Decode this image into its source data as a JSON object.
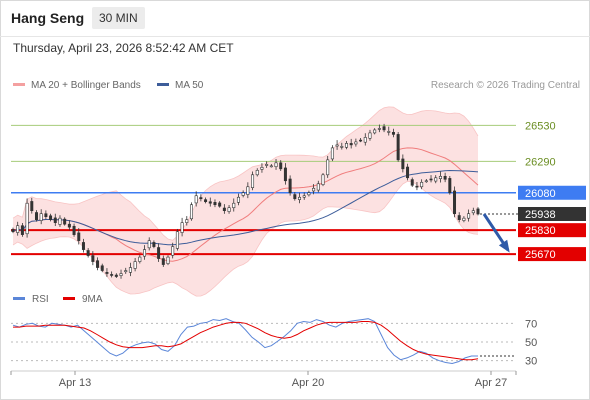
{
  "header": {
    "title": "Hang Seng",
    "timeframe": "30 MIN"
  },
  "timestamp": "Thursday, April 23, 2026 8:52:42 AM CET",
  "legend": {
    "ma20": "MA 20 + Bollinger Bands",
    "ma50": "MA 50",
    "rsi": "RSI",
    "ma9": "9MA"
  },
  "copyright": "Research © 2026 Trading Central",
  "colors": {
    "candle": "#333333",
    "bollinger_fill": "#fcdcdc",
    "ma20": "#f07d7d",
    "ma50": "#3d5d9a",
    "resistance": "#a6cc7a",
    "pivot": "#3e7cf2",
    "support": "#e30000",
    "rsi": "#5b86d8",
    "rsi_ma": "#e30000",
    "last_price_tag": "#333333"
  },
  "chart_data": [
    {
      "type": "candlestick",
      "title": "Hang Seng",
      "ylim": [
        25430,
        26700
      ],
      "x_ticks": [
        "Apr 13",
        "Apr 20",
        "Apr 27"
      ],
      "last_price": 25938,
      "levels": [
        {
          "value": 26530,
          "kind": "resistance",
          "label": "26530"
        },
        {
          "value": 26290,
          "kind": "resistance",
          "label": "26290"
        },
        {
          "value": 26080,
          "kind": "pivot",
          "label": "26080"
        },
        {
          "value": 25830,
          "kind": "support",
          "label": "25830"
        },
        {
          "value": 25670,
          "kind": "support",
          "label": "25670"
        }
      ],
      "close_path": [
        25820,
        25860,
        25800,
        26010,
        25960,
        25900,
        25940,
        25920,
        25900,
        25880,
        25910,
        25870,
        25850,
        25800,
        25760,
        25700,
        25660,
        25620,
        25580,
        25560,
        25540,
        25530,
        25520,
        25540,
        25560,
        25580,
        25620,
        25650,
        25700,
        25760,
        25720,
        25640,
        25600,
        25650,
        25720,
        25820,
        25880,
        25900,
        26000,
        26060,
        26040,
        26020,
        26010,
        26000,
        25990,
        25960,
        25980,
        26010,
        26050,
        26080,
        26120,
        26200,
        26230,
        26250,
        26270,
        26260,
        26280,
        26240,
        26160,
        26080,
        26040,
        26050,
        26060,
        26080,
        26110,
        26140,
        26200,
        26300,
        26380,
        26400,
        26390,
        26410,
        26400,
        26420,
        26430,
        26450,
        26480,
        26500,
        26510,
        26500,
        26490,
        26470,
        26300,
        26240,
        26180,
        26130,
        26120,
        26150,
        26160,
        26170,
        26180,
        26190,
        26170,
        26080,
        25940,
        25900,
        25910,
        25940,
        25960,
        25938
      ],
      "annotation": "projected decline toward 25670"
    },
    {
      "type": "line",
      "series": [
        {
          "name": "RSI",
          "values": [
            68,
            66,
            69,
            70,
            67,
            66,
            70,
            69,
            68,
            66,
            68,
            62,
            56,
            50,
            44,
            38,
            35,
            38,
            44,
            47,
            49,
            50,
            48,
            42,
            40,
            46,
            58,
            66,
            67,
            70,
            71,
            74,
            73,
            75,
            72,
            70,
            63,
            55,
            50,
            44,
            46,
            51,
            56,
            62,
            70,
            72,
            71,
            74,
            72,
            68,
            66,
            70,
            72,
            73,
            74,
            75,
            72,
            58,
            44,
            36,
            31,
            33,
            36,
            40,
            38,
            33,
            30,
            28,
            27,
            29,
            33,
            35,
            35
          ]
        },
        {
          "name": "9MA",
          "values": [
            66,
            66,
            67,
            67,
            67,
            68,
            68,
            68,
            68,
            67,
            66,
            65,
            62,
            58,
            54,
            50,
            47,
            45,
            44,
            44,
            44,
            45,
            46,
            46,
            45,
            46,
            48,
            52,
            56,
            60,
            63,
            66,
            68,
            70,
            71,
            71,
            70,
            67,
            64,
            60,
            57,
            55,
            54,
            55,
            58,
            62,
            65,
            68,
            70,
            71,
            71,
            71,
            71,
            71,
            72,
            72,
            71,
            68,
            63,
            57,
            51,
            46,
            42,
            39,
            37,
            36,
            35,
            34,
            33,
            32,
            31,
            31,
            32
          ]
        }
      ],
      "ylim": [
        20,
        80
      ],
      "y_ticks": [
        70,
        50,
        30
      ]
    }
  ]
}
